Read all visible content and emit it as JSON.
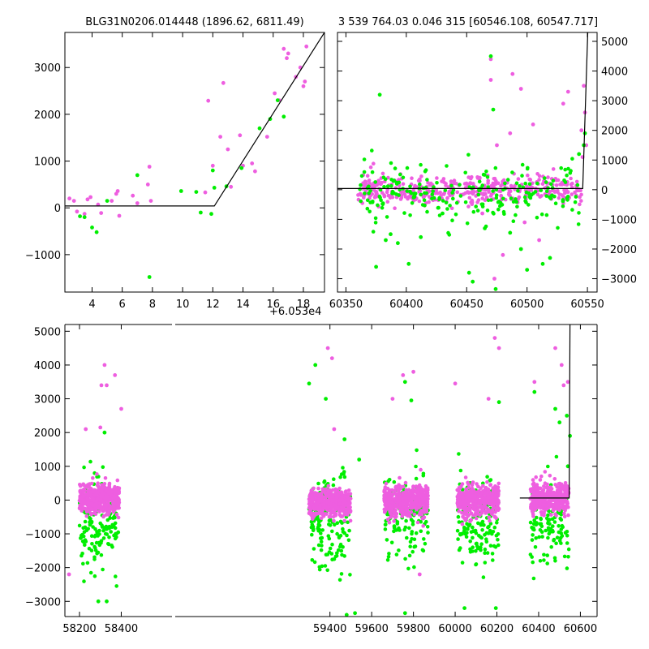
{
  "colors": {
    "series_a": "#ee5ee0",
    "series_b": "#00ee00",
    "model": "#000000",
    "background": "#ffffff"
  },
  "chart_data": [
    {
      "id": "top-left",
      "type": "scatter",
      "title": "BLG31N0206.014448 (1896.62, 6811.49)",
      "xlim": [
        2.2,
        19.4
      ],
      "ylim": [
        -1800,
        3750
      ],
      "x_offset_label": "+6.053e4",
      "x_ticks": [
        4,
        6,
        8,
        10,
        12,
        14,
        16,
        18
      ],
      "y_ticks": [
        -1000,
        0,
        1000,
        2000,
        3000
      ],
      "y_tick_labels": [
        "−1000",
        "0",
        "1000",
        "2000",
        "3000"
      ],
      "y_axis_side": "left",
      "model_line": {
        "x": [
          2.2,
          12.1,
          19.4
        ],
        "y": [
          40,
          40,
          3750
        ]
      },
      "series": [
        {
          "color": "#ee5ee0",
          "points": [
            [
              2.5,
              200
            ],
            [
              2.8,
              150
            ],
            [
              3.0,
              -80
            ],
            [
              3.5,
              -130
            ],
            [
              3.7,
              180
            ],
            [
              3.9,
              230
            ],
            [
              4.4,
              70
            ],
            [
              4.6,
              -110
            ],
            [
              5.3,
              150
            ],
            [
              5.6,
              300
            ],
            [
              5.7,
              360
            ],
            [
              5.8,
              -170
            ],
            [
              6.7,
              260
            ],
            [
              7.0,
              100
            ],
            [
              7.7,
              500
            ],
            [
              7.8,
              880
            ],
            [
              7.9,
              150
            ],
            [
              12.0,
              900
            ],
            [
              12.5,
              1520
            ],
            [
              12.7,
              2670
            ],
            [
              13.0,
              1250
            ],
            [
              13.8,
              1550
            ],
            [
              14.0,
              900
            ],
            [
              14.6,
              950
            ],
            [
              14.8,
              780
            ],
            [
              15.6,
              1520
            ],
            [
              16.1,
              2450
            ],
            [
              16.4,
              2300
            ],
            [
              16.7,
              3400
            ],
            [
              16.9,
              3200
            ],
            [
              17.0,
              3300
            ],
            [
              17.5,
              2800
            ],
            [
              17.8,
              3000
            ],
            [
              18.0,
              2600
            ],
            [
              18.1,
              2700
            ],
            [
              18.2,
              3450
            ],
            [
              11.7,
              2290
            ],
            [
              11.5,
              330
            ],
            [
              13.2,
              450
            ]
          ]
        },
        {
          "color": "#00ee00",
          "points": [
            [
              3.2,
              -180
            ],
            [
              3.5,
              -200
            ],
            [
              4.0,
              -420
            ],
            [
              4.3,
              -520
            ],
            [
              5.0,
              150
            ],
            [
              7.0,
              700
            ],
            [
              7.8,
              -1480
            ],
            [
              9.9,
              360
            ],
            [
              10.9,
              340
            ],
            [
              11.2,
              -100
            ],
            [
              11.9,
              -130
            ],
            [
              12.0,
              800
            ],
            [
              12.1,
              430
            ],
            [
              13.9,
              850
            ],
            [
              15.1,
              1700
            ],
            [
              15.8,
              1900
            ],
            [
              16.3,
              2300
            ],
            [
              16.7,
              1950
            ],
            [
              12.9,
              460
            ]
          ]
        }
      ]
    },
    {
      "id": "top-right",
      "type": "scatter",
      "title": "3 539 764.03 0.046 315 [60546.108, 60547.717]",
      "xlim": [
        60343,
        60558
      ],
      "ylim": [
        -3450,
        5300
      ],
      "x_ticks": [
        60350,
        60400,
        60450,
        60500,
        60550
      ],
      "y_ticks": [
        -3000,
        -2000,
        -1000,
        0,
        1000,
        2000,
        3000,
        4000,
        5000
      ],
      "y_tick_labels": [
        "−3000",
        "−2000",
        "−1000",
        "0",
        "1000",
        "2000",
        "3000",
        "4000",
        "5000"
      ],
      "y_axis_side": "right",
      "model_line": {
        "x": [
          60343,
          60546.1,
          60550.3
        ],
        "y": [
          40,
          40,
          5300
        ]
      },
      "series": [
        {
          "color": "#ee5ee0",
          "points": [
            [
              60470,
              3700
            ],
            [
              60470,
              4400
            ],
            [
              60475,
              1500
            ],
            [
              60488,
              3900
            ],
            [
              60495,
              3400
            ],
            [
              60486,
              1900
            ],
            [
              60530,
              2900
            ],
            [
              60534,
              3300
            ],
            [
              60547,
              3500
            ],
            [
              60548,
              2600
            ],
            [
              60545,
              2000
            ],
            [
              60549,
              1500
            ],
            [
              60546,
              1100
            ],
            [
              60473,
              -3000
            ],
            [
              60510,
              -1700
            ],
            [
              60498,
              -1100
            ],
            [
              60463,
              -800
            ],
            [
              60480,
              -2200
            ],
            [
              60505,
              2200
            ]
          ]
        },
        {
          "color": "#00ee00",
          "points": [
            [
              60378,
              3200
            ],
            [
              60470,
              4500
            ],
            [
              60472,
              2700
            ],
            [
              60375,
              -2600
            ],
            [
              60383,
              -1700
            ],
            [
              60387,
              -1500
            ],
            [
              60393,
              -1800
            ],
            [
              60402,
              -2500
            ],
            [
              60412,
              -1600
            ],
            [
              60452,
              -2800
            ],
            [
              60455,
              -3100
            ],
            [
              60474,
              -3350
            ],
            [
              60495,
              -2000
            ],
            [
              60500,
              -2700
            ],
            [
              60513,
              -2500
            ],
            [
              60519,
              -2300
            ],
            [
              60543,
              1200
            ],
            [
              60547,
              1500
            ],
            [
              60548,
              1900
            ],
            [
              60430,
              -800
            ],
            [
              60465,
              -1300
            ],
            [
              60486,
              -1450
            ]
          ]
        }
      ],
      "band_series": [
        {
          "color": "#ee5ee0",
          "x_range": [
            60360,
            60545
          ],
          "center": 0,
          "spread": 450,
          "count": 420,
          "seed": 11
        },
        {
          "color": "#00ee00",
          "x_range": [
            60360,
            60545
          ],
          "center": -150,
          "spread": 900,
          "count": 230,
          "seed": 17
        }
      ]
    },
    {
      "id": "bottom",
      "type": "scatter",
      "title": "",
      "xlim": [
        58130,
        60680
      ],
      "ylim": [
        -3450,
        5200
      ],
      "x_ticks": [
        58200,
        58400,
        59400,
        59600,
        59800,
        60000,
        60200,
        60400,
        60600
      ],
      "y_ticks": [
        -3000,
        -2000,
        -1000,
        0,
        1000,
        2000,
        3000,
        4000,
        5000
      ],
      "y_tick_labels": [
        "−3000",
        "−2000",
        "−1000",
        "0",
        "1000",
        "2000",
        "3000",
        "4000",
        "5000"
      ],
      "y_axis_side": "left",
      "model_line": {
        "x": [
          60310,
          60546.1,
          60550.3
        ],
        "y": [
          60,
          60,
          5200
        ]
      },
      "series": [
        {
          "color": "#ee5ee0",
          "points": [
            [
              58320,
              4000
            ],
            [
              58370,
              3700
            ],
            [
              58305,
              3400
            ],
            [
              58330,
              3400
            ],
            [
              58400,
              2700
            ],
            [
              58230,
              2100
            ],
            [
              58300,
              2150
            ],
            [
              59390,
              4500
            ],
            [
              59410,
              4200
            ],
            [
              59420,
              2100
            ],
            [
              59750,
              3700
            ],
            [
              59800,
              3800
            ],
            [
              59700,
              3000
            ],
            [
              60000,
              3450
            ],
            [
              60190,
              4800
            ],
            [
              60210,
              4500
            ],
            [
              60160,
              3000
            ],
            [
              60480,
              4500
            ],
            [
              60510,
              4000
            ],
            [
              60520,
              3400
            ],
            [
              60540,
              3500
            ],
            [
              60380,
              3500
            ],
            [
              58150,
              -2200
            ],
            [
              59830,
              -2200
            ]
          ]
        },
        {
          "color": "#00ee00",
          "points": [
            [
              58320,
              2000
            ],
            [
              59330,
              4000
            ],
            [
              59300,
              3450
            ],
            [
              59380,
              3000
            ],
            [
              59470,
              1800
            ],
            [
              59540,
              1200
            ],
            [
              59760,
              3500
            ],
            [
              59790,
              2950
            ],
            [
              60210,
              2900
            ],
            [
              60380,
              3200
            ],
            [
              60480,
              2700
            ],
            [
              60500,
              2300
            ],
            [
              60540,
              1000
            ],
            [
              60550,
              1900
            ],
            [
              60535,
              2500
            ],
            [
              58330,
              -3000
            ],
            [
              58290,
              -3000
            ],
            [
              59480,
              -3400
            ],
            [
              59520,
              -3350
            ],
            [
              59760,
              -3350
            ],
            [
              60195,
              -3200
            ],
            [
              60045,
              -3200
            ]
          ]
        }
      ],
      "band_series": [
        {
          "color": "#00ee00",
          "x_range": [
            58200,
            58390
          ],
          "center": -700,
          "spread": 1300,
          "count": 150,
          "seed": 101
        },
        {
          "color": "#00ee00",
          "x_range": [
            59300,
            59500
          ],
          "center": -700,
          "spread": 1300,
          "count": 150,
          "seed": 102
        },
        {
          "color": "#00ee00",
          "x_range": [
            59660,
            59870
          ],
          "center": -500,
          "spread": 1300,
          "count": 130,
          "seed": 103
        },
        {
          "color": "#00ee00",
          "x_range": [
            60010,
            60210
          ],
          "center": -600,
          "spread": 1300,
          "count": 150,
          "seed": 104
        },
        {
          "color": "#00ee00",
          "x_range": [
            60360,
            60545
          ],
          "center": -600,
          "spread": 1300,
          "count": 120,
          "seed": 105
        },
        {
          "color": "#ee5ee0",
          "x_range": [
            58200,
            58390
          ],
          "center": 30,
          "spread": 420,
          "count": 420,
          "seed": 201
        },
        {
          "color": "#ee5ee0",
          "x_range": [
            59300,
            59500
          ],
          "center": -100,
          "spread": 380,
          "count": 420,
          "seed": 202
        },
        {
          "color": "#ee5ee0",
          "x_range": [
            59660,
            59870
          ],
          "center": -50,
          "spread": 420,
          "count": 400,
          "seed": 203
        },
        {
          "color": "#ee5ee0",
          "x_range": [
            60010,
            60210
          ],
          "center": 0,
          "spread": 430,
          "count": 420,
          "seed": 204
        },
        {
          "color": "#ee5ee0",
          "x_range": [
            60360,
            60545
          ],
          "center": 50,
          "spread": 400,
          "count": 360,
          "seed": 205
        }
      ]
    }
  ]
}
